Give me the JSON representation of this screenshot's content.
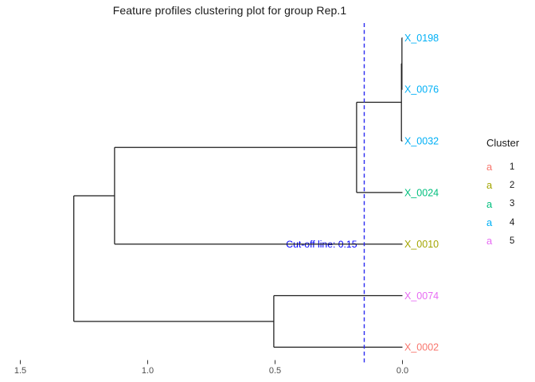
{
  "title": "Feature profiles clustering plot for group Rep.1",
  "chart_data": {
    "type": "dendrogram",
    "orientation": "horizontal",
    "title": "Feature profiles clustering plot for group Rep.1",
    "leaves": [
      {
        "id": "X_0198",
        "cluster": 4,
        "color": "#00B0F6"
      },
      {
        "id": "X_0076",
        "cluster": 4,
        "color": "#00B0F6"
      },
      {
        "id": "X_0032",
        "cluster": 4,
        "color": "#00B0F6"
      },
      {
        "id": "X_0024",
        "cluster": 3,
        "color": "#00BF7D"
      },
      {
        "id": "X_0010",
        "cluster": 2,
        "color": "#A3A500"
      },
      {
        "id": "X_0074",
        "cluster": 5,
        "color": "#E76BF3"
      },
      {
        "id": "X_0002",
        "cluster": 1,
        "color": "#F8766D"
      }
    ],
    "merges": [
      {
        "children": [
          "X_0198",
          "X_0076"
        ],
        "height": 0.002
      },
      {
        "children": [
          "m0",
          "X_0032"
        ],
        "height": 0.004
      },
      {
        "children": [
          "m1",
          "X_0024"
        ],
        "height": 0.18
      },
      {
        "children": [
          "m2",
          "X_0010"
        ],
        "height": 1.13
      },
      {
        "children": [
          "X_0074",
          "X_0002"
        ],
        "height": 0.505
      },
      {
        "children": [
          "m3",
          "m4"
        ],
        "height": 1.29
      }
    ],
    "axis_ticks": [
      "1.5",
      "1.0",
      "0.5",
      "0.0"
    ],
    "axis_range": [
      1.5,
      0.0
    ],
    "grid": false,
    "legend_position": "right",
    "cutoff": {
      "value": 0.15,
      "label": "Cut-off line: 0.15"
    }
  },
  "colors": {
    "branch": "#1c1c1c",
    "cutoff_line": "#2a2af0",
    "cutoff_text": "#0000ff",
    "axis_text": "#4d4d4d",
    "tick_mark": "#333333"
  },
  "legend": {
    "title": "Cluster",
    "key_glyph": "a",
    "items": [
      {
        "label": "1",
        "color": "#F8766D"
      },
      {
        "label": "2",
        "color": "#A3A500"
      },
      {
        "label": "3",
        "color": "#00BF7D"
      },
      {
        "label": "4",
        "color": "#00B0F6"
      },
      {
        "label": "5",
        "color": "#E76BF3"
      }
    ]
  }
}
